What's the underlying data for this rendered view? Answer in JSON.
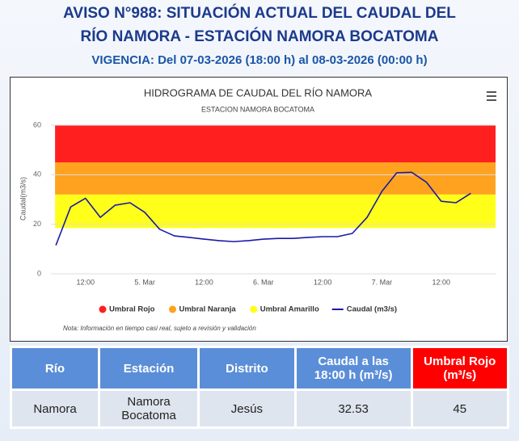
{
  "header": {
    "title": [
      "AVISO N°988: SITUACIÓN ACTUAL DEL CAUDAL DEL",
      "RÍO NAMORA - ESTACIÓN NAMORA BOCATOMA"
    ],
    "subtitle": "VIGENCIA: Del 07-03-2026 (18:00 h) al 08-03-2026 (00:00 h)"
  },
  "chart_data": {
    "type": "line",
    "title": "HIDROGRAMA DE CAUDAL DEL RÍO NAMORA",
    "subtitle": "ESTACION NAMORA BOCATOMA",
    "y_label": "Caudal(m3/s)",
    "x": [
      -18,
      -15,
      -12,
      -9,
      -6,
      -3,
      0,
      3,
      6,
      9,
      12,
      15,
      18,
      21,
      24,
      27,
      30,
      33,
      36,
      39,
      42,
      45,
      48,
      51,
      54,
      57,
      60,
      63,
      66
    ],
    "xlim": [
      -19,
      71
    ],
    "xticks": [
      {
        "value": -12,
        "label": "12:00"
      },
      {
        "value": 0,
        "label": "5. Mar"
      },
      {
        "value": 12,
        "label": "12:00"
      },
      {
        "value": 24,
        "label": "6. Mar"
      },
      {
        "value": 36,
        "label": "12:00"
      },
      {
        "value": 48,
        "label": "7. Mar"
      },
      {
        "value": 60,
        "label": "12:00"
      }
    ],
    "ylim": [
      0,
      60
    ],
    "yticks": [
      0,
      20,
      40,
      60
    ],
    "grid": true,
    "bands": [
      {
        "name": "Umbral Rojo",
        "color": "#ff1f1f",
        "range": [
          45,
          60
        ]
      },
      {
        "name": "Umbral Naranja",
        "color": "#ffa21f",
        "range": [
          32,
          45
        ]
      },
      {
        "name": "Umbral Amarillo",
        "color": "#ffff1a",
        "range": [
          18.5,
          32
        ]
      }
    ],
    "series": [
      {
        "name": "Caudal (m3/s)",
        "color": "#1a1aa6",
        "values": [
          11.5,
          27,
          30.5,
          22.8,
          27.7,
          28.7,
          24.8,
          18,
          15.3,
          14.7,
          14,
          13.4,
          13,
          13.4,
          14,
          14.3,
          14.3,
          14.7,
          15,
          15,
          16.3,
          22.8,
          33.3,
          40.8,
          41,
          37,
          29.3,
          28.7,
          32.5
        ]
      }
    ],
    "note": "Nota: Información en tiempo casi real, sujeto a revisión y validación"
  },
  "table": {
    "columns": [
      "Río",
      "Estación",
      "Distrito",
      "Caudal a las 18:00 h (m³/s)",
      "Umbral Rojo (m³/s)"
    ],
    "rows": [
      [
        "Namora",
        "Namora Bocatoma",
        "Jesús",
        32.53,
        45
      ]
    ]
  }
}
